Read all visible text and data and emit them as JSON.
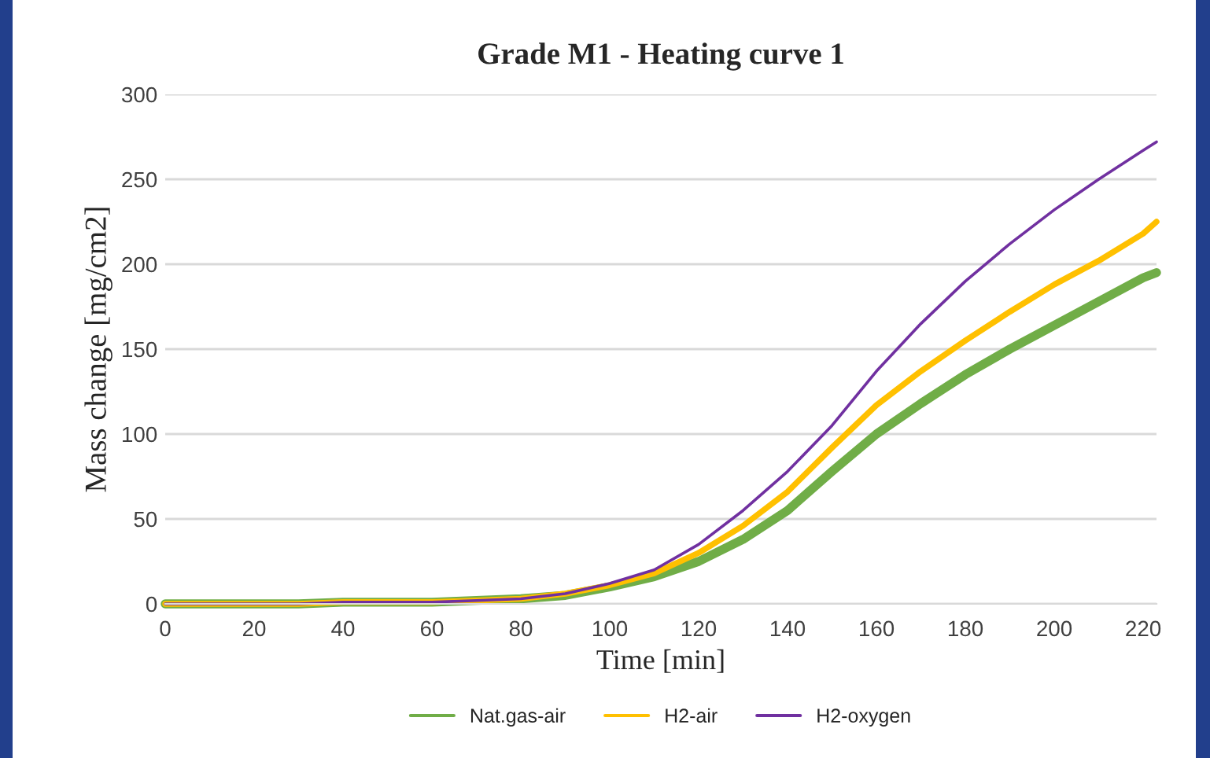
{
  "chart_data": {
    "type": "line",
    "title": "Grade M1 - Heating curve 1",
    "xlabel": "Time [min]",
    "ylabel": "Mass change [mg/cm2]",
    "x": [
      0,
      10,
      20,
      30,
      40,
      50,
      60,
      70,
      80,
      90,
      100,
      110,
      120,
      130,
      140,
      150,
      160,
      170,
      180,
      190,
      200,
      210,
      220,
      223
    ],
    "series": [
      {
        "name": "Nat.gas-air",
        "color": "#70ad47",
        "values": [
          0,
          0,
          0,
          0,
          1,
          1,
          1,
          2,
          3,
          5,
          10,
          16,
          25,
          38,
          55,
          78,
          100,
          118,
          135,
          150,
          164,
          178,
          192,
          195
        ]
      },
      {
        "name": "H2-air",
        "color": "#ffc000",
        "values": [
          0,
          0,
          0,
          0,
          1,
          1,
          1,
          2,
          3,
          6,
          11,
          18,
          30,
          46,
          66,
          92,
          117,
          137,
          155,
          172,
          188,
          202,
          218,
          225
        ]
      },
      {
        "name": "H2-oxygen",
        "color": "#7030a0",
        "values": [
          0,
          0,
          0,
          0,
          1,
          1,
          1,
          2,
          3,
          6,
          12,
          20,
          35,
          55,
          78,
          105,
          137,
          165,
          190,
          212,
          232,
          250,
          267,
          272
        ]
      }
    ],
    "xlim": [
      0,
      223
    ],
    "xticks": [
      0,
      20,
      40,
      60,
      80,
      100,
      120,
      140,
      160,
      180,
      200,
      220
    ],
    "ylim": [
      0,
      300
    ],
    "yticks": [
      0,
      50,
      100,
      150,
      200,
      250,
      300
    ],
    "grid": "y",
    "legend": "bottom",
    "marker": "none",
    "line_style": "solid"
  }
}
